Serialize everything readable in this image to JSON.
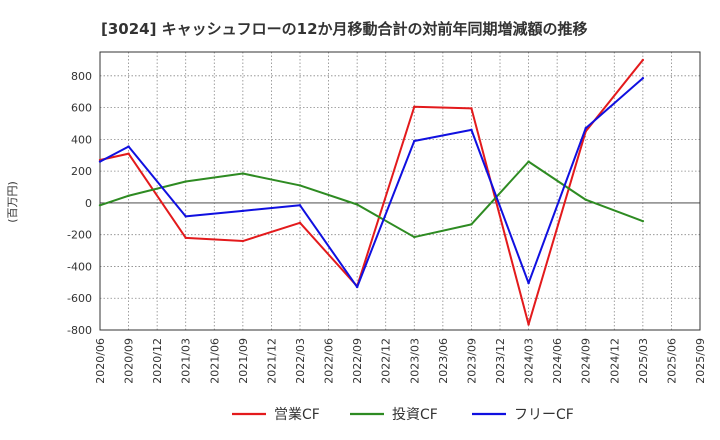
{
  "chart_data": {
    "type": "line",
    "title": "[3024]  キャッシュフローの12か月移動合計の対前年同期増減額の推移",
    "ylabel": "(百万円)",
    "xlabel": "",
    "ylim": [
      -800,
      950
    ],
    "yticks": [
      -800,
      -600,
      -400,
      -200,
      0,
      200,
      400,
      600,
      800
    ],
    "categories": [
      "2020/06",
      "2020/09",
      "2020/12",
      "2021/03",
      "2021/06",
      "2021/09",
      "2021/12",
      "2022/03",
      "2022/06",
      "2022/09",
      "2022/12",
      "2023/03",
      "2023/06",
      "2023/09",
      "2023/12",
      "2024/03",
      "2024/06",
      "2024/09",
      "2024/12",
      "2025/03",
      "2025/06",
      "2025/09"
    ],
    "grid": true,
    "legend_position": "bottom",
    "series": [
      {
        "name": "営業CF",
        "color": "#e31a1c",
        "values": [
          270,
          310,
          null,
          -220,
          null,
          -240,
          null,
          -125,
          null,
          -525,
          null,
          605,
          null,
          595,
          null,
          -765,
          null,
          450,
          null,
          900,
          null,
          null
        ]
      },
      {
        "name": "投資CF",
        "color": "#2e8b22",
        "values": [
          -15,
          45,
          null,
          135,
          null,
          185,
          null,
          110,
          null,
          -10,
          null,
          -215,
          null,
          -135,
          null,
          260,
          null,
          20,
          null,
          -115,
          null,
          null
        ]
      },
      {
        "name": "フリーCF",
        "color": "#1010e0",
        "values": [
          260,
          355,
          null,
          -85,
          null,
          -50,
          null,
          -15,
          null,
          -530,
          null,
          390,
          null,
          460,
          null,
          -505,
          null,
          470,
          null,
          785,
          null,
          null
        ]
      }
    ]
  }
}
